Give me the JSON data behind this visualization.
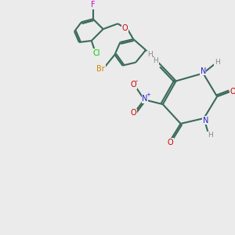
{
  "bg_color": "#ebebeb",
  "bond_color": "#3a6b5a",
  "bond_width": 1.5,
  "atom_colors": {
    "F": "#cc00cc",
    "Cl": "#00cc00",
    "Br": "#cc8800",
    "N": "#2222cc",
    "O": "#cc0000",
    "H": "#888888",
    "C": "#3a6b5a"
  },
  "font_size": 7,
  "title_font_size": 6
}
